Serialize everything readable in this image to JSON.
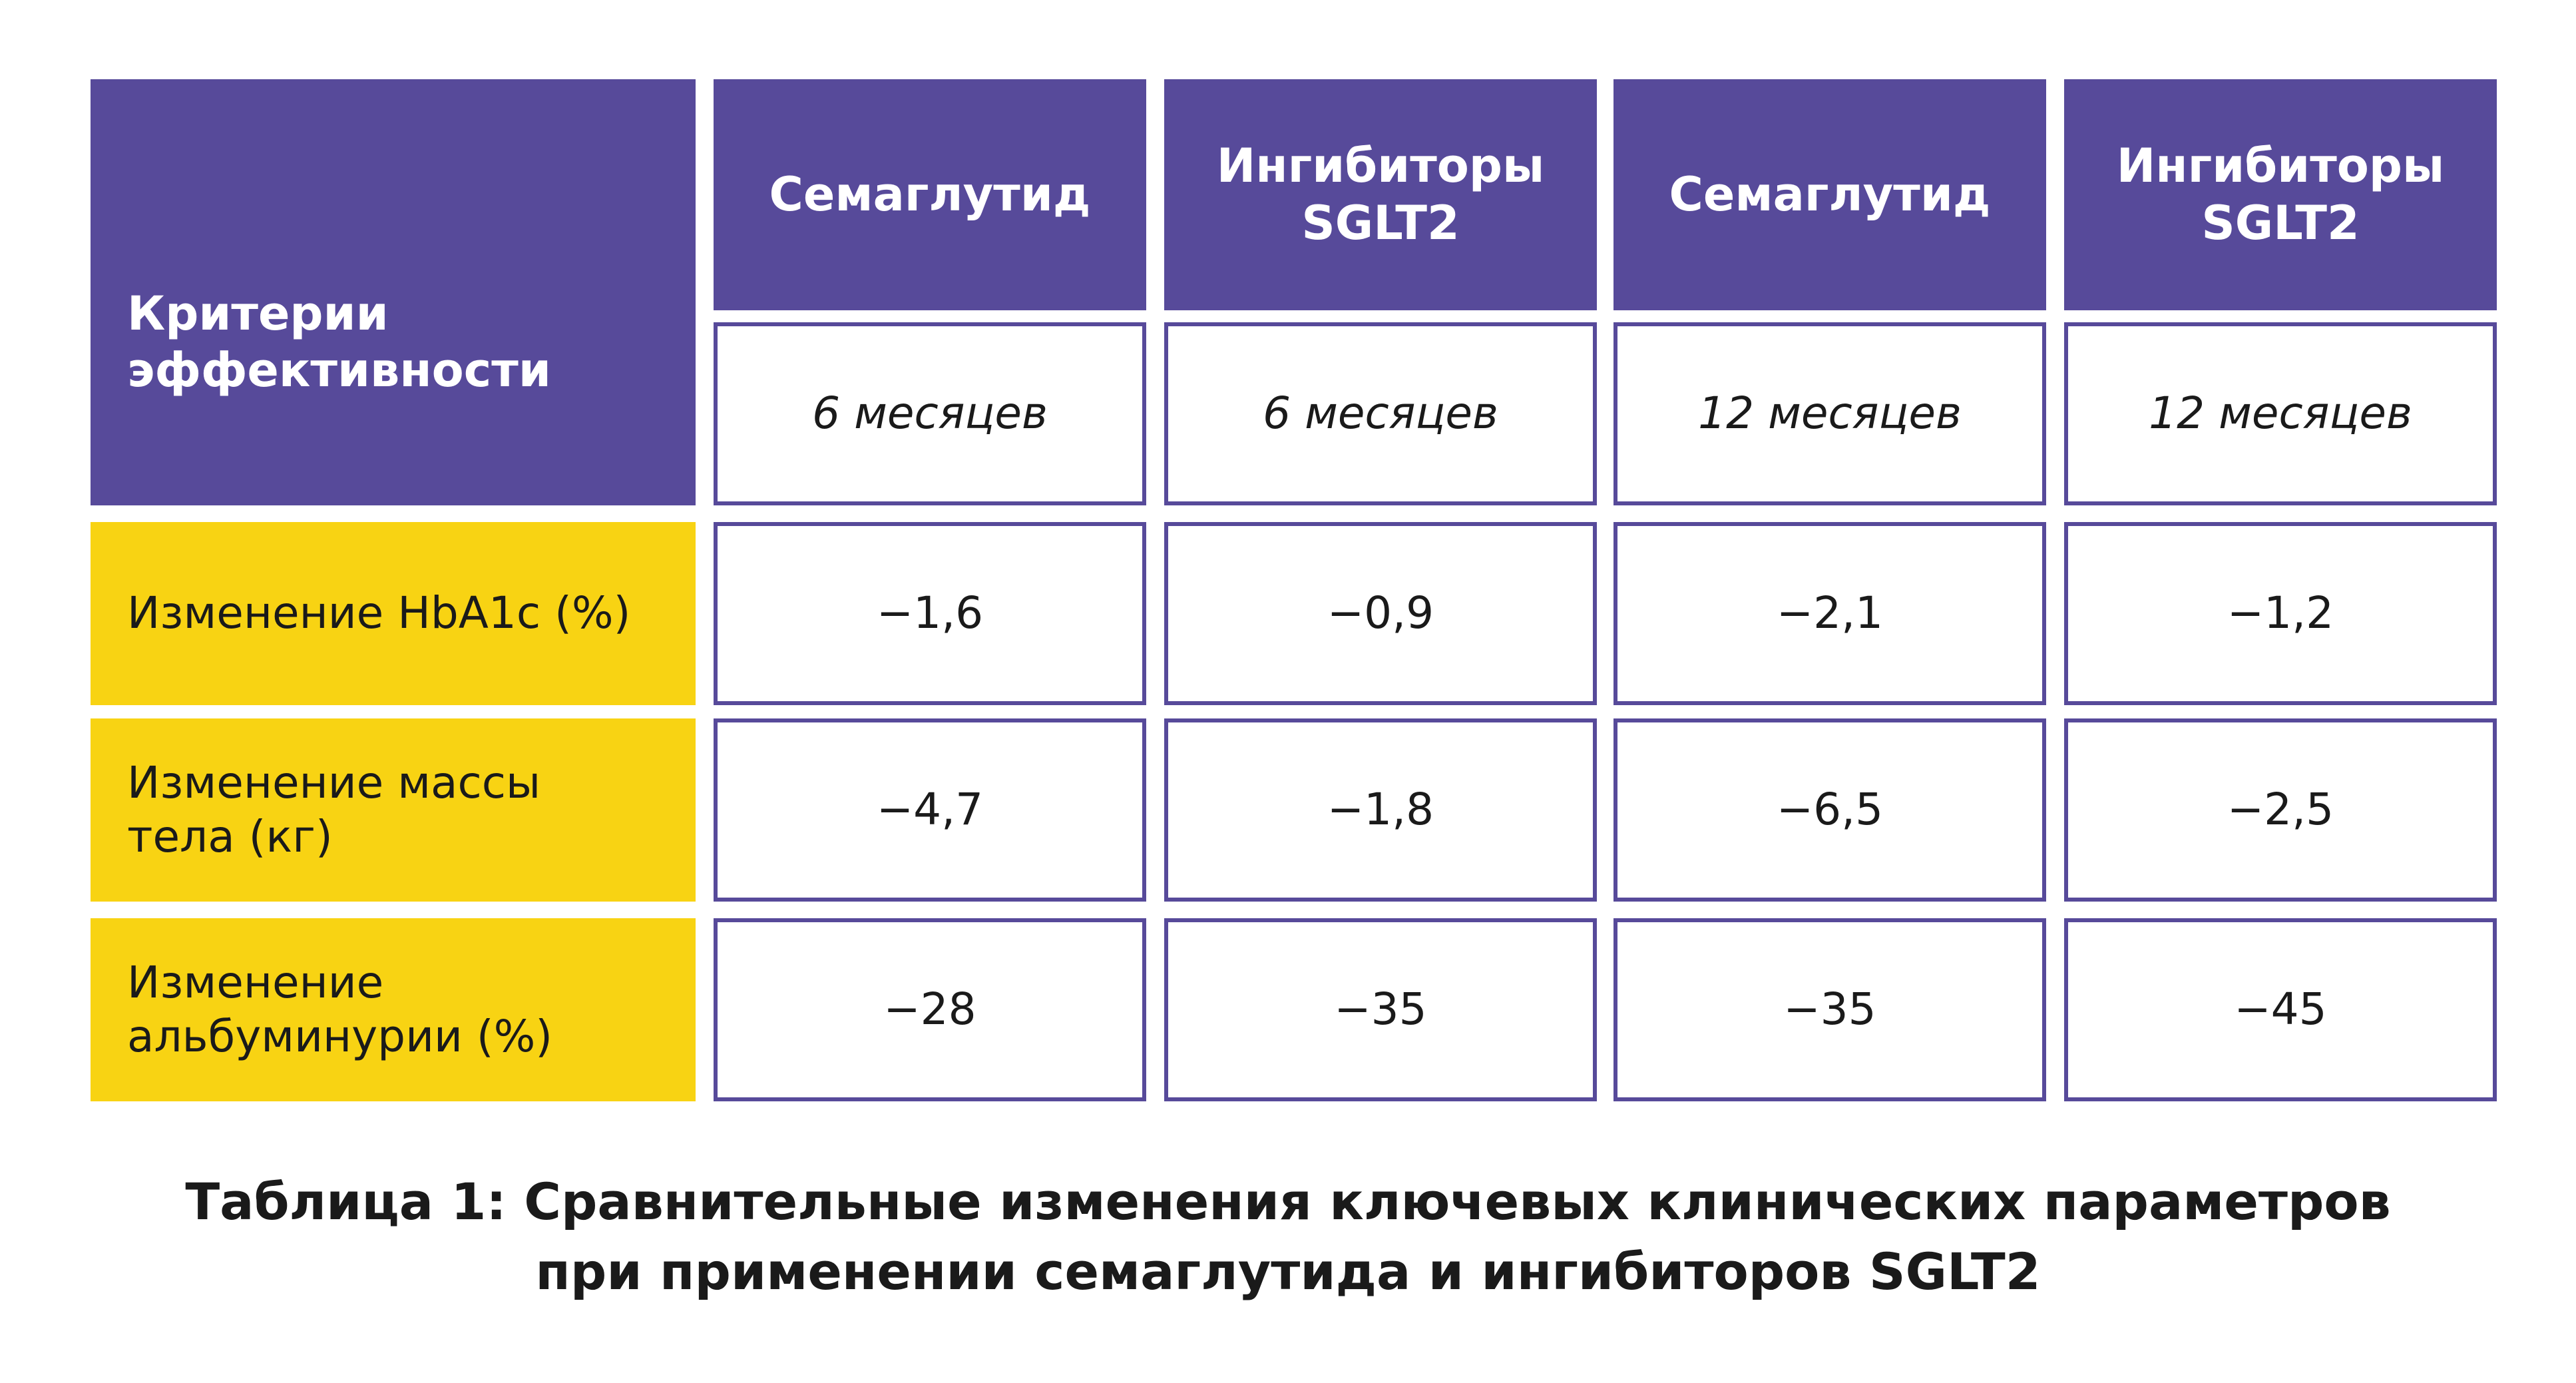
{
  "table": {
    "corner": "Критерии эффективности",
    "drugs": [
      "Семаглутид",
      "Ингибиторы SGLT2",
      "Семаглутид",
      "Ингибиторы SGLT2"
    ],
    "periods": [
      "6 месяцев",
      "6 месяцев",
      "12 месяцев",
      "12 месяцев"
    ],
    "rows": [
      {
        "label": "Изменение HbA1c (%)",
        "values": [
          "−1,6",
          "−0,9",
          "−2,1",
          "−1,2"
        ]
      },
      {
        "label": "Изменение массы тела (кг)",
        "values": [
          "−4,7",
          "−1,8",
          "−6,5",
          "−2,5"
        ]
      },
      {
        "label": "Изменение альбуминурии (%)",
        "values": [
          "−28",
          "−35",
          "−35",
          "−45"
        ]
      }
    ]
  },
  "caption": [
    "Таблица 1: Сравнительные изменения ключевых клинических параметров",
    "при применении семаглутида и ингибиторов SGLT2"
  ]
}
